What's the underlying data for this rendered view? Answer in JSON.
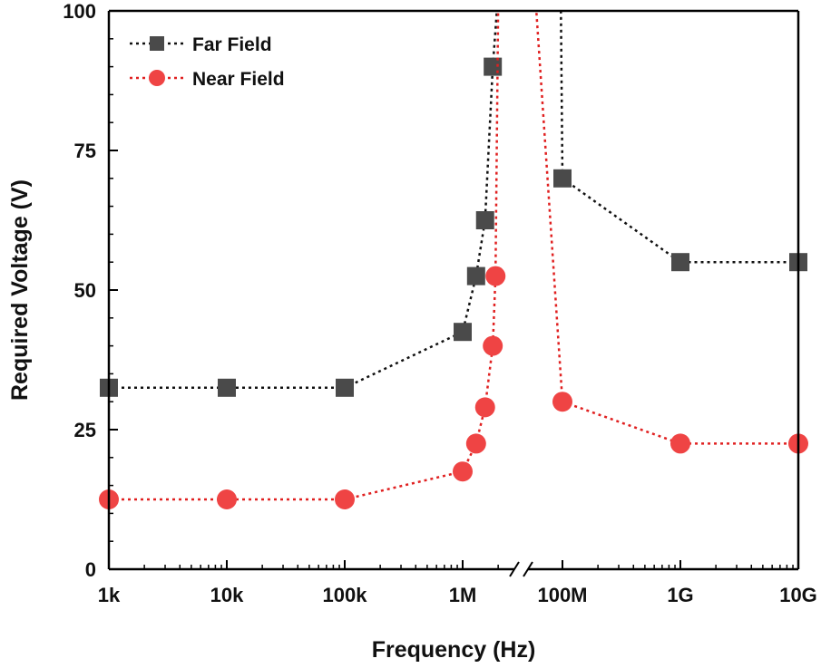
{
  "chart_data": {
    "type": "line",
    "xlabel": "Frequency (Hz)",
    "ylabel": "Required Voltage (V)",
    "ylim": [
      0,
      100
    ],
    "yticks": [
      {
        "value": 0,
        "label": "0"
      },
      {
        "value": 25,
        "label": "25"
      },
      {
        "value": 50,
        "label": "50"
      },
      {
        "value": 75,
        "label": "75"
      },
      {
        "value": 100,
        "label": "100"
      }
    ],
    "x_scale": "log",
    "x_axis_break": {
      "between_hz": [
        2000000,
        100000000
      ],
      "symbol": "//"
    },
    "segments": [
      {
        "xlim_hz": [
          1000,
          2000000
        ]
      },
      {
        "xlim_hz": [
          100000000,
          10000000000
        ]
      }
    ],
    "xticks": [
      {
        "value": 1000,
        "label": "1k"
      },
      {
        "value": 10000,
        "label": "10k"
      },
      {
        "value": 100000,
        "label": "100k"
      },
      {
        "value": 1000000,
        "label": "1M"
      },
      {
        "value": 100000000,
        "label": "100M"
      },
      {
        "value": 1000000000,
        "label": "1G"
      },
      {
        "value": 10000000000,
        "label": "10G"
      }
    ],
    "legend": {
      "position": "top-left"
    },
    "series": [
      {
        "name": "Far Field",
        "color": "#4a4a4a",
        "line_color": "#111111",
        "marker": "square",
        "points": [
          {
            "x": 1000,
            "y": 32.5
          },
          {
            "x": 10000,
            "y": 32.5
          },
          {
            "x": 100000,
            "y": 32.5
          },
          {
            "x": 1000000,
            "y": 42.5
          },
          {
            "x": 1300000,
            "y": 52.5
          },
          {
            "x": 1550000,
            "y": 62.5
          },
          {
            "x": 1800000,
            "y": 90
          },
          {
            "x": 100000000,
            "y": 70
          },
          {
            "x": 1000000000,
            "y": 55
          },
          {
            "x": 10000000000,
            "y": 55
          }
        ],
        "asymptote_left": [
          {
            "x": 1800000,
            "y": 90
          },
          {
            "x": 1950000,
            "y": 100
          }
        ],
        "asymptote_right": [
          {
            "x": 100000000,
            "y": 70
          },
          {
            "x": 97000000,
            "y": 100
          }
        ]
      },
      {
        "name": "Near Field",
        "color": "#ef4444",
        "line_color": "#e02020",
        "marker": "circle",
        "points": [
          {
            "x": 1000,
            "y": 12.5
          },
          {
            "x": 10000,
            "y": 12.5
          },
          {
            "x": 100000,
            "y": 12.5
          },
          {
            "x": 1000000,
            "y": 17.5
          },
          {
            "x": 1300000,
            "y": 22.5
          },
          {
            "x": 1550000,
            "y": 29
          },
          {
            "x": 1800000,
            "y": 40
          },
          {
            "x": 1900000,
            "y": 52.5
          },
          {
            "x": 100000000,
            "y": 30
          },
          {
            "x": 1000000000,
            "y": 22.5
          },
          {
            "x": 10000000000,
            "y": 22.5
          }
        ],
        "asymptote_left": [
          {
            "x": 1900000,
            "y": 52.5
          },
          {
            "x": 2000000,
            "y": 100
          }
        ],
        "asymptote_right": [
          {
            "x": 100000000,
            "y": 30
          },
          {
            "x": 60000000,
            "y": 100
          }
        ]
      }
    ]
  }
}
